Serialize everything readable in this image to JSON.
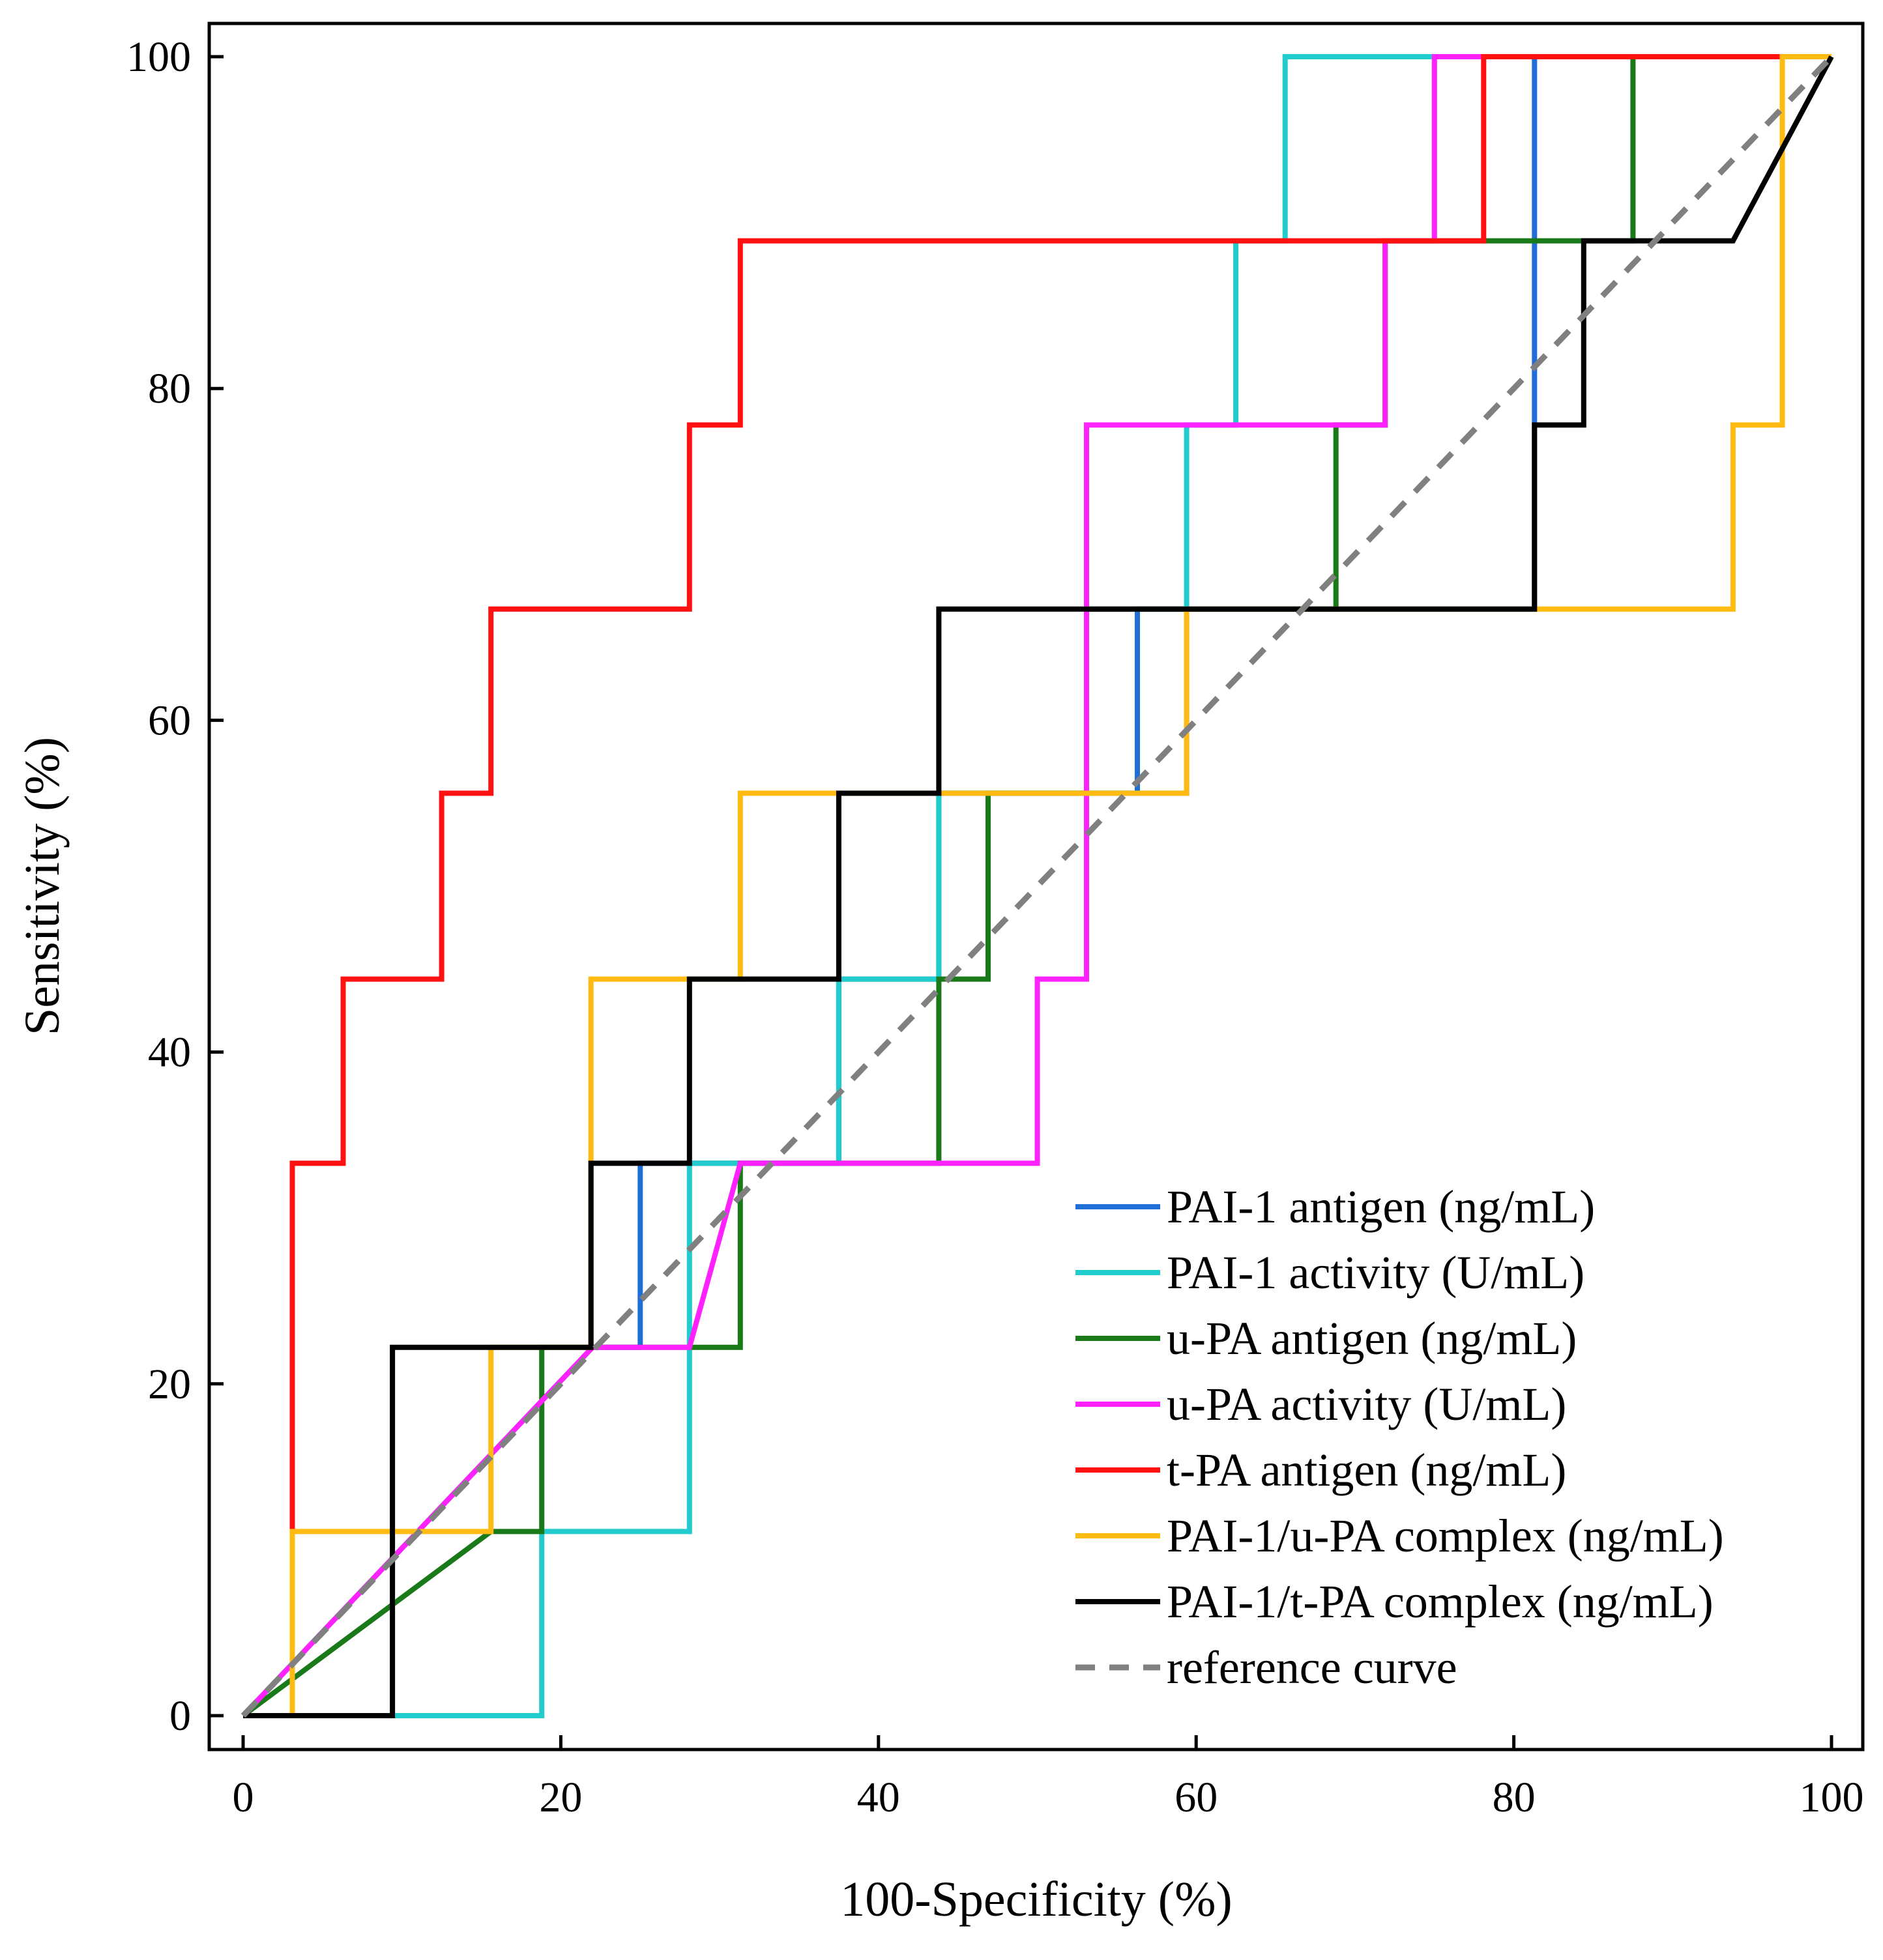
{
  "chart_data": {
    "type": "line",
    "xlabel": "100-Specificity (%)",
    "ylabel": "Sensitivity (%)",
    "xlim": [
      -5,
      104
    ],
    "ylim": [
      -2,
      102
    ],
    "x_ticks": [
      0,
      20,
      40,
      60,
      80,
      100
    ],
    "y_ticks": [
      0,
      20,
      40,
      60,
      80,
      100
    ],
    "x_tick_labels": [
      "0",
      "20",
      "40",
      "60",
      "80",
      "100"
    ],
    "y_tick_labels": [
      "0",
      "20",
      "40",
      "60",
      "80",
      "100"
    ],
    "grid": false,
    "legend_position": "bottom-right",
    "series": [
      {
        "name": "PAI-1 antigen (ng/mL)",
        "color": "#1f6fd6",
        "dash": "solid",
        "points": [
          [
            0,
            0
          ],
          [
            22,
            22.2
          ],
          [
            25,
            22.2
          ],
          [
            25,
            33.3
          ],
          [
            37.5,
            33.3
          ],
          [
            37.5,
            44.4
          ],
          [
            43.8,
            44.4
          ],
          [
            43.8,
            55.6
          ],
          [
            56.3,
            55.6
          ],
          [
            56.3,
            66.7
          ],
          [
            81.3,
            66.7
          ],
          [
            81.3,
            100
          ],
          [
            100,
            100
          ]
        ]
      },
      {
        "name": "PAI-1 activity (U/mL)",
        "color": "#22cccc",
        "dash": "solid",
        "points": [
          [
            0,
            0
          ],
          [
            18.8,
            0
          ],
          [
            18.8,
            11.1
          ],
          [
            28.1,
            11.1
          ],
          [
            28.1,
            33.3
          ],
          [
            37.5,
            33.3
          ],
          [
            37.5,
            44.4
          ],
          [
            43.8,
            44.4
          ],
          [
            43.8,
            55.6
          ],
          [
            59.4,
            55.6
          ],
          [
            59.4,
            77.8
          ],
          [
            62.5,
            77.8
          ],
          [
            62.5,
            88.9
          ],
          [
            65.6,
            88.9
          ],
          [
            65.6,
            100
          ],
          [
            100,
            100
          ]
        ]
      },
      {
        "name": "u-PA antigen (ng/mL)",
        "color": "#1a7a1a",
        "dash": "solid",
        "points": [
          [
            0,
            0
          ],
          [
            15.6,
            11.1
          ],
          [
            18.8,
            11.1
          ],
          [
            18.8,
            22.2
          ],
          [
            31.3,
            22.2
          ],
          [
            31.3,
            33.3
          ],
          [
            43.8,
            33.3
          ],
          [
            43.8,
            44.4
          ],
          [
            46.9,
            44.4
          ],
          [
            46.9,
            55.6
          ],
          [
            53.1,
            55.6
          ],
          [
            53.1,
            66.7
          ],
          [
            68.8,
            66.7
          ],
          [
            68.8,
            77.8
          ],
          [
            71.9,
            77.8
          ],
          [
            71.9,
            88.9
          ],
          [
            87.5,
            88.9
          ],
          [
            87.5,
            100
          ],
          [
            100,
            100
          ]
        ]
      },
      {
        "name": "u-PA activity (U/mL)",
        "color": "#ff22ff",
        "dash": "solid",
        "points": [
          [
            0,
            0
          ],
          [
            22,
            22.2
          ],
          [
            28.1,
            22.2
          ],
          [
            31.3,
            33.3
          ],
          [
            50,
            33.3
          ],
          [
            50,
            44.4
          ],
          [
            53.1,
            44.4
          ],
          [
            53.1,
            77.8
          ],
          [
            71.9,
            77.8
          ],
          [
            71.9,
            88.9
          ],
          [
            75,
            88.9
          ],
          [
            75,
            100
          ],
          [
            100,
            100
          ]
        ]
      },
      {
        "name": "t-PA antigen (ng/mL)",
        "color": "#ff1111",
        "dash": "solid",
        "points": [
          [
            3.1,
            11.1
          ],
          [
            3.1,
            33.3
          ],
          [
            6.3,
            33.3
          ],
          [
            6.3,
            44.4
          ],
          [
            12.5,
            44.4
          ],
          [
            12.5,
            55.6
          ],
          [
            15.6,
            55.6
          ],
          [
            15.6,
            66.7
          ],
          [
            28.1,
            66.7
          ],
          [
            28.1,
            77.8
          ],
          [
            31.3,
            77.8
          ],
          [
            31.3,
            88.9
          ],
          [
            78.1,
            88.9
          ],
          [
            78.1,
            100
          ],
          [
            96.9,
            100
          ]
        ]
      },
      {
        "name": "PAI-1/u-PA complex (ng/mL)",
        "color": "#ffbb11",
        "dash": "solid",
        "points": [
          [
            0,
            0
          ],
          [
            3.1,
            0
          ],
          [
            3.1,
            11.1
          ],
          [
            15.6,
            11.1
          ],
          [
            15.6,
            22.2
          ],
          [
            21.9,
            22.2
          ],
          [
            21.9,
            44.4
          ],
          [
            31.3,
            44.4
          ],
          [
            31.3,
            55.6
          ],
          [
            59.4,
            55.6
          ],
          [
            59.4,
            66.7
          ],
          [
            93.8,
            66.7
          ],
          [
            93.8,
            77.8
          ],
          [
            96.9,
            77.8
          ],
          [
            96.9,
            100
          ],
          [
            100,
            100
          ]
        ]
      },
      {
        "name": "PAI-1/t-PA complex (ng/mL)",
        "color": "#000000",
        "dash": "solid",
        "points": [
          [
            0,
            0
          ],
          [
            9.4,
            0
          ],
          [
            9.4,
            22.2
          ],
          [
            21.9,
            22.2
          ],
          [
            21.9,
            33.3
          ],
          [
            28.1,
            33.3
          ],
          [
            28.1,
            44.4
          ],
          [
            37.5,
            44.4
          ],
          [
            37.5,
            55.6
          ],
          [
            43.8,
            55.6
          ],
          [
            43.8,
            66.7
          ],
          [
            81.3,
            66.7
          ],
          [
            81.3,
            77.8
          ],
          [
            84.4,
            77.8
          ],
          [
            84.4,
            88.9
          ],
          [
            93.8,
            88.9
          ],
          [
            100,
            100
          ]
        ]
      },
      {
        "name": "reference curve",
        "color": "#808080",
        "dash": "dashed",
        "points": [
          [
            0,
            0
          ],
          [
            100,
            100
          ]
        ]
      }
    ]
  }
}
